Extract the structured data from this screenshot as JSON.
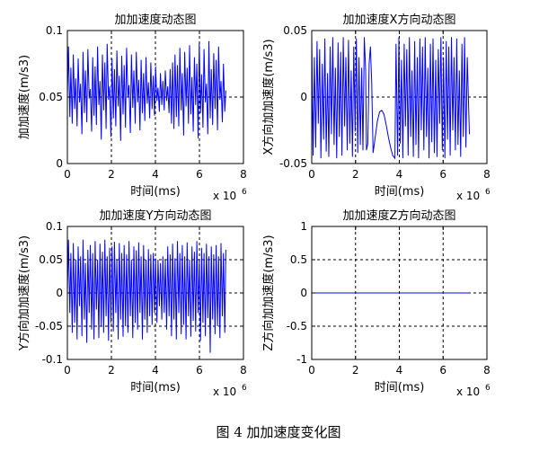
{
  "figure": {
    "caption": "图 4  加加速度变化图"
  },
  "chart_data": [
    {
      "type": "line",
      "title": "加加速度动态图",
      "xlabel": "时间(ms)",
      "ylabel": "加加速度(m/s3)",
      "x_multiplier": "x 10",
      "x_multiplier_exp": "6",
      "xlim": [
        0,
        8
      ],
      "ylim": [
        0,
        0.1
      ],
      "xticks": [
        0,
        2,
        4,
        6,
        8
      ],
      "yticks": [
        0,
        0.05,
        0.1
      ],
      "ytick_labels": [
        "0",
        "0.05",
        "0.1"
      ],
      "grid": true,
      "color": "#0000ff",
      "series": [
        {
          "x": [
            0,
            0.05,
            0.11,
            0.16,
            0.22,
            0.27,
            0.33,
            0.38,
            0.44,
            0.49,
            0.55,
            0.6,
            0.66,
            0.71,
            0.77,
            0.82,
            0.88,
            0.93,
            0.99,
            1.04,
            1.1,
            1.15,
            1.21,
            1.26,
            1.32,
            1.37,
            1.43,
            1.48,
            1.54,
            1.59,
            1.65,
            1.7,
            1.76,
            1.81,
            1.87,
            1.92,
            1.98,
            2.03,
            2.09,
            2.14,
            2.2,
            2.25,
            2.31,
            2.36,
            2.42,
            2.47,
            2.53,
            2.58,
            2.64,
            2.69,
            2.75,
            2.8,
            2.86,
            2.91,
            2.97,
            3.02,
            3.08,
            3.13,
            3.19,
            3.24,
            3.3,
            3.35,
            3.41,
            3.46,
            3.52,
            3.57,
            3.63,
            3.68,
            3.74,
            3.79,
            3.85,
            3.9,
            3.96,
            4.01,
            4.07,
            4.12,
            4.18,
            4.23,
            4.29,
            4.34,
            4.4,
            4.45,
            4.51,
            4.56,
            4.62,
            4.67,
            4.73,
            4.78,
            4.84,
            4.89,
            4.95,
            5.0,
            5.06,
            5.11,
            5.17,
            5.22,
            5.28,
            5.33,
            5.39,
            5.44,
            5.5,
            5.55,
            5.61,
            5.66,
            5.72,
            5.77,
            5.83,
            5.88,
            5.94,
            5.99,
            6.05,
            6.1,
            6.16,
            6.21,
            6.27,
            6.32,
            6.38,
            6.43,
            6.49,
            6.54,
            6.6,
            6.65,
            6.71,
            6.76,
            6.82,
            6.87,
            6.93,
            6.98,
            7.04,
            7.09,
            7.15,
            7.2
          ],
          "y": [
            0.05,
            0.088,
            0.035,
            0.072,
            0.03,
            0.082,
            0.041,
            0.064,
            0.028,
            0.079,
            0.046,
            0.06,
            0.022,
            0.084,
            0.038,
            0.07,
            0.031,
            0.086,
            0.049,
            0.056,
            0.024,
            0.08,
            0.036,
            0.073,
            0.029,
            0.088,
            0.044,
            0.062,
            0.018,
            0.082,
            0.04,
            0.076,
            0.026,
            0.09,
            0.048,
            0.058,
            0.02,
            0.079,
            0.034,
            0.071,
            0.028,
            0.085,
            0.043,
            0.066,
            0.017,
            0.081,
            0.037,
            0.074,
            0.027,
            0.087,
            0.05,
            0.059,
            0.023,
            0.082,
            0.042,
            0.07,
            0.03,
            0.084,
            0.046,
            0.063,
            0.025,
            0.078,
            0.038,
            0.068,
            0.032,
            0.08,
            0.045,
            0.061,
            0.034,
            0.076,
            0.041,
            0.066,
            0.036,
            0.073,
            0.047,
            0.057,
            0.039,
            0.068,
            0.044,
            0.062,
            0.04,
            0.07,
            0.047,
            0.058,
            0.038,
            0.071,
            0.03,
            0.076,
            0.026,
            0.082,
            0.035,
            0.074,
            0.028,
            0.087,
            0.04,
            0.068,
            0.021,
            0.084,
            0.043,
            0.072,
            0.03,
            0.089,
            0.037,
            0.065,
            0.024,
            0.08,
            0.044,
            0.075,
            0.019,
            0.091,
            0.038,
            0.067,
            0.027,
            0.086,
            0.046,
            0.06,
            0.022,
            0.092,
            0.034,
            0.071,
            0.029,
            0.083,
            0.041,
            0.078,
            0.025,
            0.088,
            0.048,
            0.062,
            0.031,
            0.075,
            0.039,
            0.055
          ]
        }
      ]
    },
    {
      "type": "line",
      "title": "加加速度X方向动态图",
      "xlabel": "时间(ms)",
      "ylabel": "X方向加加速度(m/s3)",
      "x_multiplier": "x 10",
      "x_multiplier_exp": "6",
      "xlim": [
        0,
        8
      ],
      "ylim": [
        -0.05,
        0.05
      ],
      "xticks": [
        0,
        2,
        4,
        6,
        8
      ],
      "yticks": [
        -0.05,
        0,
        0.05
      ],
      "ytick_labels": [
        "-0.05",
        "0",
        "0.05"
      ],
      "grid": true,
      "color": "#0000ff",
      "series": [
        {
          "x": [
            0,
            0.06,
            0.12,
            0.18,
            0.24,
            0.3,
            0.36,
            0.42,
            0.48,
            0.54,
            0.6,
            0.66,
            0.72,
            0.78,
            0.84,
            0.9,
            0.96,
            1.02,
            1.08,
            1.14,
            1.2,
            1.26,
            1.32,
            1.38,
            1.44,
            1.5,
            1.56,
            1.62,
            1.68,
            1.74,
            1.8,
            1.86,
            1.92,
            1.98,
            2.04,
            2.1,
            2.16,
            2.22,
            2.28,
            2.34,
            2.4,
            2.46,
            2.5,
            2.56,
            2.62,
            2.68,
            2.74,
            2.8,
            2.9,
            3.0,
            3.1,
            3.2,
            3.3,
            3.4,
            3.5,
            3.6,
            3.7,
            3.8,
            3.85,
            3.92,
            3.98,
            4.04,
            4.1,
            4.16,
            4.22,
            4.28,
            4.34,
            4.4,
            4.46,
            4.52,
            4.58,
            4.64,
            4.7,
            4.76,
            4.82,
            4.88,
            4.94,
            5.0,
            5.06,
            5.12,
            5.18,
            5.24,
            5.3,
            5.36,
            5.42,
            5.48,
            5.54,
            5.6,
            5.66,
            5.72,
            5.78,
            5.84,
            5.9,
            5.96,
            6.02,
            6.08,
            6.14,
            6.2,
            6.26,
            6.32,
            6.38,
            6.44,
            6.5,
            6.56,
            6.62,
            6.68,
            6.74,
            6.8,
            6.86,
            6.92,
            6.98,
            7.04,
            7.1,
            7.2
          ],
          "y": [
            0.045,
            -0.044,
            0.03,
            -0.038,
            0.042,
            -0.02,
            0.036,
            -0.046,
            0.025,
            -0.032,
            0.044,
            -0.041,
            0.018,
            -0.045,
            0.038,
            -0.028,
            0.045,
            -0.036,
            0.022,
            -0.046,
            0.041,
            -0.03,
            0.034,
            -0.044,
            0.045,
            -0.022,
            0.03,
            -0.04,
            0.043,
            -0.035,
            0.02,
            -0.045,
            0.038,
            -0.026,
            0.044,
            -0.042,
            0.03,
            -0.036,
            0.022,
            -0.04,
            0.045,
            0.02,
            -0.04,
            -0.035,
            0.025,
            0.038,
            0.01,
            -0.042,
            -0.03,
            -0.018,
            -0.011,
            -0.01,
            -0.013,
            -0.021,
            -0.03,
            -0.038,
            -0.044,
            -0.046,
            0.04,
            -0.044,
            0.045,
            -0.035,
            0.028,
            -0.046,
            0.04,
            -0.022,
            0.036,
            -0.044,
            0.045,
            -0.03,
            0.02,
            -0.045,
            0.042,
            -0.036,
            0.03,
            -0.046,
            0.044,
            -0.025,
            0.038,
            -0.04,
            0.045,
            -0.03,
            0.022,
            -0.046,
            0.04,
            -0.034,
            0.044,
            -0.042,
            0.028,
            -0.045,
            0.036,
            -0.02,
            0.045,
            -0.04,
            0.03,
            -0.046,
            0.042,
            -0.032,
            0.038,
            -0.044,
            0.045,
            -0.025,
            0.03,
            -0.04,
            0.044,
            -0.036,
            0.02,
            -0.045,
            0.04,
            -0.03,
            0.045,
            -0.038,
            0.03,
            -0.028
          ]
        }
      ]
    },
    {
      "type": "line",
      "title": "加加速度Y方向动态图",
      "xlabel": "时间(ms)",
      "ylabel": "Y方向加加速度(m/s3)",
      "x_multiplier": "x 10",
      "x_multiplier_exp": "6",
      "xlim": [
        0,
        8
      ],
      "ylim": [
        -0.1,
        0.1
      ],
      "xticks": [
        0,
        2,
        4,
        6,
        8
      ],
      "yticks": [
        -0.1,
        -0.05,
        0,
        0.05,
        0.1
      ],
      "ytick_labels": [
        "-0.1",
        "-0.05",
        "0",
        "0.05",
        "0.1"
      ],
      "grid": true,
      "color": "#0000ff",
      "series": [
        {
          "x": [
            0,
            0.05,
            0.11,
            0.16,
            0.22,
            0.27,
            0.33,
            0.38,
            0.44,
            0.49,
            0.55,
            0.6,
            0.66,
            0.71,
            0.77,
            0.82,
            0.88,
            0.93,
            0.99,
            1.04,
            1.1,
            1.15,
            1.21,
            1.26,
            1.32,
            1.37,
            1.43,
            1.48,
            1.54,
            1.59,
            1.65,
            1.7,
            1.76,
            1.81,
            1.87,
            1.92,
            1.98,
            2.03,
            2.09,
            2.14,
            2.2,
            2.25,
            2.31,
            2.36,
            2.42,
            2.47,
            2.53,
            2.58,
            2.64,
            2.69,
            2.75,
            2.8,
            2.86,
            2.91,
            2.97,
            3.02,
            3.08,
            3.13,
            3.19,
            3.24,
            3.3,
            3.35,
            3.41,
            3.46,
            3.52,
            3.57,
            3.63,
            3.68,
            3.74,
            3.79,
            3.85,
            3.9,
            3.96,
            4.01,
            4.07,
            4.12,
            4.18,
            4.23,
            4.29,
            4.34,
            4.4,
            4.45,
            4.51,
            4.56,
            4.62,
            4.67,
            4.73,
            4.78,
            4.84,
            4.89,
            4.95,
            5.0,
            5.06,
            5.11,
            5.17,
            5.22,
            5.28,
            5.33,
            5.39,
            5.44,
            5.5,
            5.55,
            5.61,
            5.66,
            5.72,
            5.77,
            5.83,
            5.88,
            5.94,
            5.99,
            6.05,
            6.1,
            6.16,
            6.21,
            6.27,
            6.32,
            6.38,
            6.43,
            6.49,
            6.54,
            6.6,
            6.65,
            6.71,
            6.76,
            6.82,
            6.87,
            6.93,
            6.98,
            7.04,
            7.09,
            7.15,
            7.2
          ],
          "y": [
            0.0,
            0.08,
            -0.03,
            0.06,
            -0.06,
            0.075,
            -0.045,
            0.05,
            -0.07,
            0.07,
            -0.02,
            0.055,
            -0.065,
            0.08,
            -0.04,
            0.045,
            -0.075,
            0.065,
            -0.03,
            0.072,
            -0.055,
            0.06,
            -0.07,
            0.078,
            -0.025,
            0.05,
            -0.068,
            0.074,
            -0.05,
            0.062,
            -0.06,
            0.08,
            -0.035,
            0.055,
            -0.072,
            0.068,
            -0.045,
            0.07,
            -0.058,
            0.077,
            -0.03,
            0.05,
            -0.07,
            0.075,
            -0.04,
            0.06,
            -0.066,
            0.072,
            -0.05,
            0.058,
            -0.06,
            0.078,
            -0.035,
            0.05,
            -0.068,
            0.07,
            -0.045,
            0.064,
            -0.055,
            0.076,
            -0.03,
            0.055,
            -0.07,
            0.072,
            -0.04,
            0.05,
            -0.06,
            0.066,
            -0.035,
            0.058,
            -0.048,
            0.06,
            -0.03,
            0.052,
            -0.045,
            0.05,
            -0.02,
            0.045,
            -0.04,
            0.055,
            -0.03,
            0.05,
            -0.055,
            0.07,
            -0.035,
            0.058,
            -0.065,
            0.074,
            -0.04,
            0.052,
            -0.07,
            0.078,
            -0.03,
            0.06,
            -0.062,
            0.072,
            -0.048,
            0.055,
            -0.07,
            0.076,
            -0.035,
            0.05,
            -0.066,
            0.07,
            -0.042,
            0.062,
            -0.058,
            0.078,
            -0.03,
            0.05,
            -0.072,
            0.068,
            -0.045,
            0.06,
            -0.065,
            0.074,
            -0.038,
            0.055,
            -0.09,
            0.07,
            -0.04,
            0.058,
            -0.062,
            0.072,
            -0.05,
            0.055,
            -0.068,
            0.075,
            -0.035,
            0.06,
            -0.06,
            0.065
          ]
        }
      ]
    },
    {
      "type": "line",
      "title": "加加速度Z方向动态图",
      "xlabel": "时间(ms)",
      "ylabel": "Z方向加加速度(m/s3)",
      "x_multiplier": "x 10",
      "x_multiplier_exp": "6",
      "xlim": [
        0,
        8
      ],
      "ylim": [
        -1,
        1
      ],
      "xticks": [
        0,
        2,
        4,
        6,
        8
      ],
      "yticks": [
        -1,
        -0.5,
        0,
        0.5,
        1
      ],
      "ytick_labels": [
        "-1",
        "-0.5",
        "0",
        "0.5",
        "1"
      ],
      "grid": true,
      "color": "#0000ff",
      "series": [
        {
          "x": [
            0,
            7.2
          ],
          "y": [
            0,
            0
          ]
        }
      ]
    }
  ]
}
